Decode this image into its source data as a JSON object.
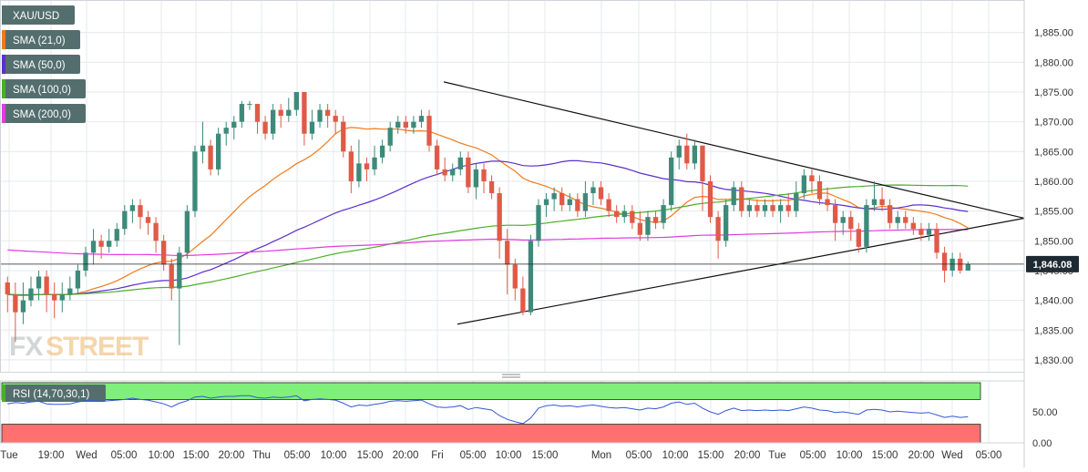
{
  "chart_data": {
    "type": "candlestick",
    "symbol": "XAU/USD",
    "legend": [
      {
        "label": "XAU/USD",
        "color": "#546e6e"
      },
      {
        "label": "SMA (21,0)",
        "color": "#f07a1a"
      },
      {
        "label": "SMA (50,0)",
        "color": "#5b2fcf"
      },
      {
        "label": "SMA (100,0)",
        "color": "#4cad2a"
      },
      {
        "label": "SMA (200,0)",
        "color": "#e23be0"
      }
    ],
    "colors": {
      "up": "#3d8a7a",
      "down": "#e05a48",
      "grid": "#e6e8ec",
      "trendline": "#111111",
      "rsi_upper_band": "#7ff07a",
      "rsi_lower_band": "#ff7070",
      "rsi_line": "#3358d6"
    },
    "yaxis": {
      "min": 1828,
      "max": 1890,
      "ticks": [
        "1,830.00",
        "1,835.00",
        "1,840.00",
        "1,845.00",
        "1,850.00",
        "1,855.00",
        "1,860.00",
        "1,865.00",
        "1,870.00",
        "1,875.00",
        "1,880.00",
        "1,885.00"
      ]
    },
    "last_price": 1846.08,
    "last_price_label": "1,846.08",
    "xaxis": {
      "ticks": [
        "Tue",
        "19:00",
        "Wed",
        "05:00",
        "10:00",
        "15:00",
        "20:00",
        "Thu",
        "05:00",
        "10:00",
        "15:00",
        "20:00",
        "Fri",
        "05:00",
        "10:00",
        "15:00",
        "Mon",
        "05:00",
        "10:00",
        "15:00",
        "20:00",
        "Tue",
        "05:00",
        "10:00",
        "15:00",
        "20:00",
        "Wed",
        "05:00"
      ]
    },
    "candles": [
      [
        1843.0,
        1841.0,
        1844.0,
        1838.0
      ],
      [
        1841.0,
        1838.0,
        1843.0,
        1833.0
      ],
      [
        1838.0,
        1840.0,
        1843.0,
        1836.0
      ],
      [
        1840.0,
        1842.0,
        1844.0,
        1839.0
      ],
      [
        1842.0,
        1844.0,
        1845.0,
        1840.0
      ],
      [
        1844.0,
        1841.0,
        1845.0,
        1838.0
      ],
      [
        1841.0,
        1840.0,
        1843.0,
        1837.0
      ],
      [
        1840.0,
        1841.0,
        1843.0,
        1838.0
      ],
      [
        1841.0,
        1842.0,
        1844.0,
        1840.0
      ],
      [
        1842.0,
        1845.0,
        1846.0,
        1841.0
      ],
      [
        1845.0,
        1848.0,
        1849.0,
        1844.0
      ],
      [
        1848.0,
        1850.0,
        1852.0,
        1846.0
      ],
      [
        1850.0,
        1849.0,
        1851.0,
        1847.0
      ],
      [
        1849.0,
        1850.0,
        1852.0,
        1848.0
      ],
      [
        1850.0,
        1852.0,
        1853.0,
        1849.0
      ],
      [
        1852.0,
        1855.0,
        1856.0,
        1851.0
      ],
      [
        1855.0,
        1856.0,
        1857.0,
        1853.0
      ],
      [
        1856.0,
        1854.0,
        1857.0,
        1852.0
      ],
      [
        1854.0,
        1853.0,
        1855.0,
        1851.0
      ],
      [
        1853.0,
        1850.0,
        1854.0,
        1848.0
      ],
      [
        1850.0,
        1846.0,
        1851.0,
        1845.0
      ],
      [
        1846.0,
        1842.0,
        1847.0,
        1840.0
      ],
      [
        1842.0,
        1848.0,
        1849.0,
        1832.5
      ],
      [
        1848.0,
        1855.0,
        1856.0,
        1847.0
      ],
      [
        1855.0,
        1865.0,
        1866.0,
        1854.0
      ],
      [
        1865.0,
        1866.0,
        1870.0,
        1863.0
      ],
      [
        1866.0,
        1862.0,
        1867.0,
        1861.0
      ],
      [
        1862.0,
        1868.0,
        1869.0,
        1861.0
      ],
      [
        1868.0,
        1869.0,
        1870.0,
        1866.0
      ],
      [
        1869.0,
        1870.0,
        1871.0,
        1867.0
      ],
      [
        1870.0,
        1873.0,
        1873.5,
        1869.0
      ],
      [
        1873.0,
        1873.0,
        1873.5,
        1872.0
      ],
      [
        1873.0,
        1870.0,
        1873.0,
        1868.0
      ],
      [
        1870.0,
        1868.0,
        1871.0,
        1867.0
      ],
      [
        1868.0,
        1872.0,
        1873.0,
        1867.0
      ],
      [
        1872.0,
        1871.0,
        1873.0,
        1869.0
      ],
      [
        1871.0,
        1872.0,
        1874.0,
        1870.0
      ],
      [
        1872.0,
        1875.0,
        1875.0,
        1871.0
      ],
      [
        1875.0,
        1868.0,
        1875.0,
        1866.0
      ],
      [
        1868.0,
        1870.0,
        1872.0,
        1867.0
      ],
      [
        1870.0,
        1872.0,
        1873.0,
        1869.0
      ],
      [
        1872.0,
        1871.0,
        1873.0,
        1869.0
      ],
      [
        1871.0,
        1870.0,
        1872.0,
        1868.0
      ],
      [
        1870.0,
        1865.0,
        1871.0,
        1864.0
      ],
      [
        1865.0,
        1860.0,
        1866.0,
        1858.0
      ],
      [
        1860.0,
        1863.0,
        1867.0,
        1859.0
      ],
      [
        1863.0,
        1862.0,
        1864.0,
        1860.0
      ],
      [
        1862.0,
        1864.0,
        1866.0,
        1861.0
      ],
      [
        1864.0,
        1866.0,
        1867.0,
        1863.0
      ],
      [
        1866.0,
        1869.0,
        1870.0,
        1865.0
      ],
      [
        1869.0,
        1870.0,
        1871.0,
        1868.0
      ],
      [
        1870.0,
        1869.0,
        1871.0,
        1868.0
      ],
      [
        1869.0,
        1870.0,
        1871.0,
        1868.0
      ],
      [
        1870.0,
        1871.0,
        1872.0,
        1869.0
      ],
      [
        1871.0,
        1866.0,
        1872.0,
        1865.0
      ],
      [
        1866.0,
        1862.0,
        1867.0,
        1861.0
      ],
      [
        1862.0,
        1861.0,
        1864.0,
        1860.0
      ],
      [
        1861.0,
        1862.0,
        1863.0,
        1860.0
      ],
      [
        1862.0,
        1864.0,
        1865.0,
        1861.0
      ],
      [
        1864.0,
        1859.0,
        1865.0,
        1858.0
      ],
      [
        1859.0,
        1862.0,
        1863.0,
        1857.0
      ],
      [
        1862.0,
        1860.0,
        1863.0,
        1858.0
      ],
      [
        1860.0,
        1858.0,
        1861.0,
        1857.0
      ],
      [
        1858.0,
        1850.0,
        1859.0,
        1847.0
      ],
      [
        1850.0,
        1846.0,
        1852.0,
        1841.0
      ],
      [
        1846.0,
        1842.0,
        1847.0,
        1840.0
      ],
      [
        1842.0,
        1838.0,
        1844.0,
        1837.5
      ],
      [
        1838.0,
        1850.0,
        1851.0,
        1837.5
      ],
      [
        1850.0,
        1856.0,
        1857.0,
        1849.0
      ],
      [
        1856.0,
        1857.0,
        1858.0,
        1854.0
      ],
      [
        1857.0,
        1858.0,
        1859.0,
        1855.0
      ],
      [
        1858.0,
        1856.0,
        1859.0,
        1855.0
      ],
      [
        1856.0,
        1857.0,
        1858.0,
        1855.0
      ],
      [
        1857.0,
        1855.0,
        1858.0,
        1854.0
      ],
      [
        1855.0,
        1858.0,
        1860.0,
        1854.0
      ],
      [
        1858.0,
        1859.0,
        1860.0,
        1856.0
      ],
      [
        1859.0,
        1857.0,
        1860.0,
        1856.0
      ],
      [
        1857.0,
        1855.0,
        1858.0,
        1854.0
      ],
      [
        1855.0,
        1854.0,
        1856.0,
        1853.0
      ],
      [
        1854.0,
        1855.0,
        1856.0,
        1853.0
      ],
      [
        1855.0,
        1853.0,
        1856.0,
        1852.0
      ],
      [
        1853.0,
        1851.0,
        1855.0,
        1850.0
      ],
      [
        1851.0,
        1854.0,
        1855.0,
        1850.0
      ],
      [
        1854.0,
        1853.0,
        1855.0,
        1852.0
      ],
      [
        1853.0,
        1856.0,
        1857.0,
        1852.0
      ],
      [
        1856.0,
        1864.0,
        1865.0,
        1855.0
      ],
      [
        1864.0,
        1866.0,
        1867.0,
        1862.0
      ],
      [
        1866.0,
        1863.0,
        1868.0,
        1862.0
      ],
      [
        1863.0,
        1866.0,
        1867.0,
        1862.0
      ],
      [
        1866.0,
        1860.0,
        1866.0,
        1855.0
      ],
      [
        1860.0,
        1854.0,
        1861.0,
        1853.0
      ],
      [
        1854.0,
        1850.0,
        1855.0,
        1847.0
      ],
      [
        1850.0,
        1856.0,
        1857.0,
        1849.0
      ],
      [
        1856.0,
        1859.0,
        1860.0,
        1855.0
      ],
      [
        1859.0,
        1855.0,
        1860.0,
        1854.0
      ],
      [
        1855.0,
        1856.0,
        1857.0,
        1854.0
      ],
      [
        1856.0,
        1855.0,
        1857.0,
        1854.0
      ],
      [
        1855.0,
        1856.0,
        1857.0,
        1854.0
      ],
      [
        1856.0,
        1855.0,
        1857.0,
        1854.0
      ],
      [
        1855.0,
        1856.0,
        1857.0,
        1853.0
      ],
      [
        1856.0,
        1855.0,
        1858.0,
        1854.0
      ],
      [
        1855.0,
        1858.0,
        1860.0,
        1854.0
      ],
      [
        1858.0,
        1861.0,
        1862.0,
        1857.0
      ],
      [
        1861.0,
        1860.0,
        1862.0,
        1858.0
      ],
      [
        1860.0,
        1857.0,
        1861.0,
        1856.0
      ],
      [
        1857.0,
        1856.0,
        1859.0,
        1855.0
      ],
      [
        1856.0,
        1853.0,
        1857.0,
        1850.0
      ],
      [
        1853.0,
        1854.0,
        1855.0,
        1851.0
      ],
      [
        1854.0,
        1852.0,
        1855.0,
        1850.0
      ],
      [
        1852.0,
        1849.0,
        1853.0,
        1848.0
      ],
      [
        1849.0,
        1856.0,
        1857.0,
        1848.0
      ],
      [
        1856.0,
        1857.0,
        1860.0,
        1855.0
      ],
      [
        1857.0,
        1856.0,
        1859.0,
        1855.0
      ],
      [
        1856.0,
        1853.0,
        1857.0,
        1852.0
      ],
      [
        1853.0,
        1854.0,
        1855.0,
        1852.0
      ],
      [
        1854.0,
        1853.0,
        1855.0,
        1852.0
      ],
      [
        1853.0,
        1852.0,
        1854.0,
        1851.0
      ],
      [
        1852.0,
        1851.0,
        1853.0,
        1850.0
      ],
      [
        1851.0,
        1852.0,
        1853.0,
        1850.0
      ],
      [
        1852.0,
        1848.0,
        1853.0,
        1847.0
      ],
      [
        1848.0,
        1845.0,
        1849.0,
        1843.0
      ],
      [
        1845.0,
        1847.0,
        1848.0,
        1844.0
      ],
      [
        1847.0,
        1845.0,
        1848.0,
        1844.5
      ],
      [
        1845.0,
        1846.08,
        1846.5,
        1845.5
      ]
    ],
    "trendlines": [
      {
        "name": "upper",
        "points": [
          [
            1,
            1876.7
          ],
          [
            2,
            1853.8
          ]
        ]
      },
      {
        "name": "lower",
        "points": [
          [
            1,
            1836.0
          ],
          [
            2,
            1853.8
          ]
        ]
      }
    ],
    "rsi": {
      "label": "RSI (14,70,30,1)",
      "ylim": [
        0,
        100
      ],
      "overbought": 70,
      "oversold": 30,
      "ticks": [
        "50.00",
        "0.00"
      ],
      "values": [
        63,
        65,
        64,
        66,
        67,
        63,
        62,
        62,
        63,
        66,
        68,
        68,
        67,
        68,
        69,
        70,
        72,
        70,
        69,
        66,
        63,
        58,
        64,
        68,
        74,
        75,
        72,
        74,
        75,
        75,
        76,
        76,
        73,
        72,
        74,
        73,
        74,
        76,
        68,
        70,
        71,
        70,
        69,
        64,
        58,
        61,
        60,
        62,
        64,
        67,
        68,
        67,
        68,
        69,
        63,
        58,
        57,
        58,
        60,
        54,
        57,
        55,
        53,
        44,
        38,
        34,
        31,
        40,
        56,
        60,
        61,
        59,
        60,
        58,
        60,
        61,
        59,
        57,
        56,
        57,
        55,
        53,
        56,
        55,
        58,
        64,
        66,
        62,
        64,
        56,
        50,
        46,
        52,
        56,
        52,
        53,
        52,
        53,
        52,
        53,
        52,
        55,
        58,
        56,
        53,
        52,
        49,
        50,
        48,
        46,
        53,
        54,
        53,
        50,
        51,
        50,
        49,
        48,
        49,
        45,
        41,
        43,
        41,
        42
      ]
    }
  }
}
